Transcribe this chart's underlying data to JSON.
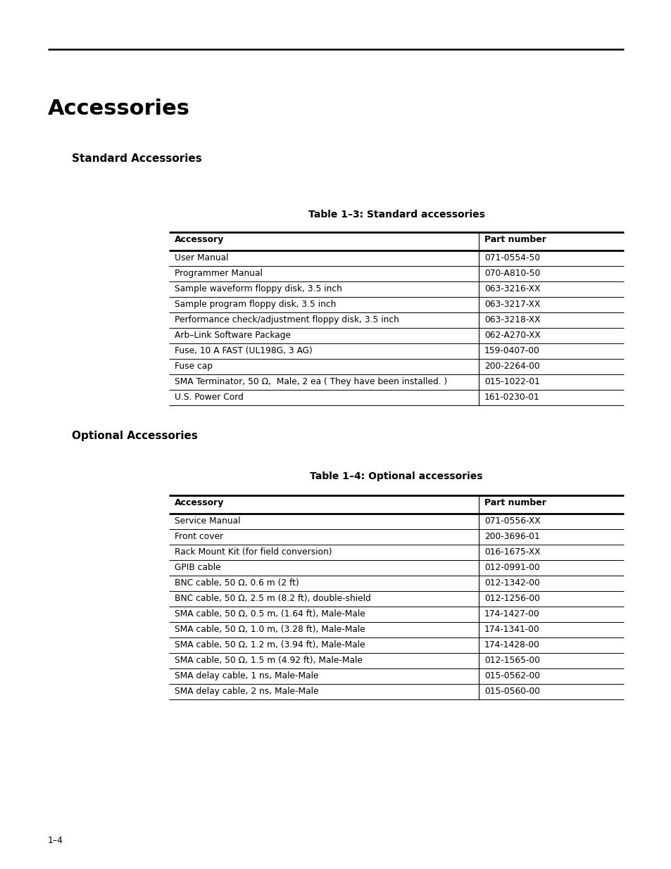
{
  "title": "Accessories",
  "section1": "Standard Accessories",
  "table1_title": "Table 1–3: Standard accessories",
  "table1_headers": [
    "Accessory",
    "Part number"
  ],
  "table1_rows": [
    [
      "User Manual",
      "071-0554-50"
    ],
    [
      "Programmer Manual",
      "070-A810-50"
    ],
    [
      "Sample waveform floppy disk, 3.5 inch",
      "063-3216-XX"
    ],
    [
      "Sample program floppy disk, 3.5 inch",
      "063-3217-XX"
    ],
    [
      "Performance check/adjustment floppy disk, 3.5 inch",
      "063-3218-XX"
    ],
    [
      "Arb–Link Software Package",
      "062-A270-XX"
    ],
    [
      "Fuse, 10 A FAST (UL198G, 3 AG)",
      "159-0407-00"
    ],
    [
      "Fuse cap",
      "200-2264-00"
    ],
    [
      "SMA Terminator, 50 Ω,  Male, 2 ea ( They have been installed. )",
      "015-1022-01"
    ],
    [
      "U.S. Power Cord",
      "161-0230-01"
    ]
  ],
  "section2": "Optional Accessories",
  "table2_title": "Table 1–4: Optional accessories",
  "table2_headers": [
    "Accessory",
    "Part number"
  ],
  "table2_rows": [
    [
      "Service Manual",
      "071-0556-XX"
    ],
    [
      "Front cover",
      "200-3696-01"
    ],
    [
      "Rack Mount Kit (for field conversion)",
      "016-1675-XX"
    ],
    [
      "GPIB cable",
      "012-0991-00"
    ],
    [
      "BNC cable, 50 Ω, 0.6 m (2 ft)",
      "012-1342-00"
    ],
    [
      "BNC cable, 50 Ω, 2.5 m (8.2 ft), double-shield",
      "012-1256-00"
    ],
    [
      "SMA cable, 50 Ω, 0.5 m, (1.64 ft), Male-Male",
      "174-1427-00"
    ],
    [
      "SMA cable, 50 Ω, 1.0 m, (3.28 ft), Male-Male",
      "174-1341-00"
    ],
    [
      "SMA cable, 50 Ω, 1.2 m, (3.94 ft), Male-Male",
      "174-1428-00"
    ],
    [
      "SMA cable, 50 Ω, 1.5 m (4.92 ft), Male-Male",
      "012-1565-00"
    ],
    [
      "SMA delay cable, 1 ns, Male-Male",
      "015-0562-00"
    ],
    [
      "SMA delay cable, 2 ns, Male-Male",
      "015-0560-00"
    ]
  ],
  "footer": "1–4",
  "bg_color": "#ffffff",
  "text_color": "#000000",
  "page_width": 9.54,
  "page_height": 12.35,
  "dpi": 100
}
